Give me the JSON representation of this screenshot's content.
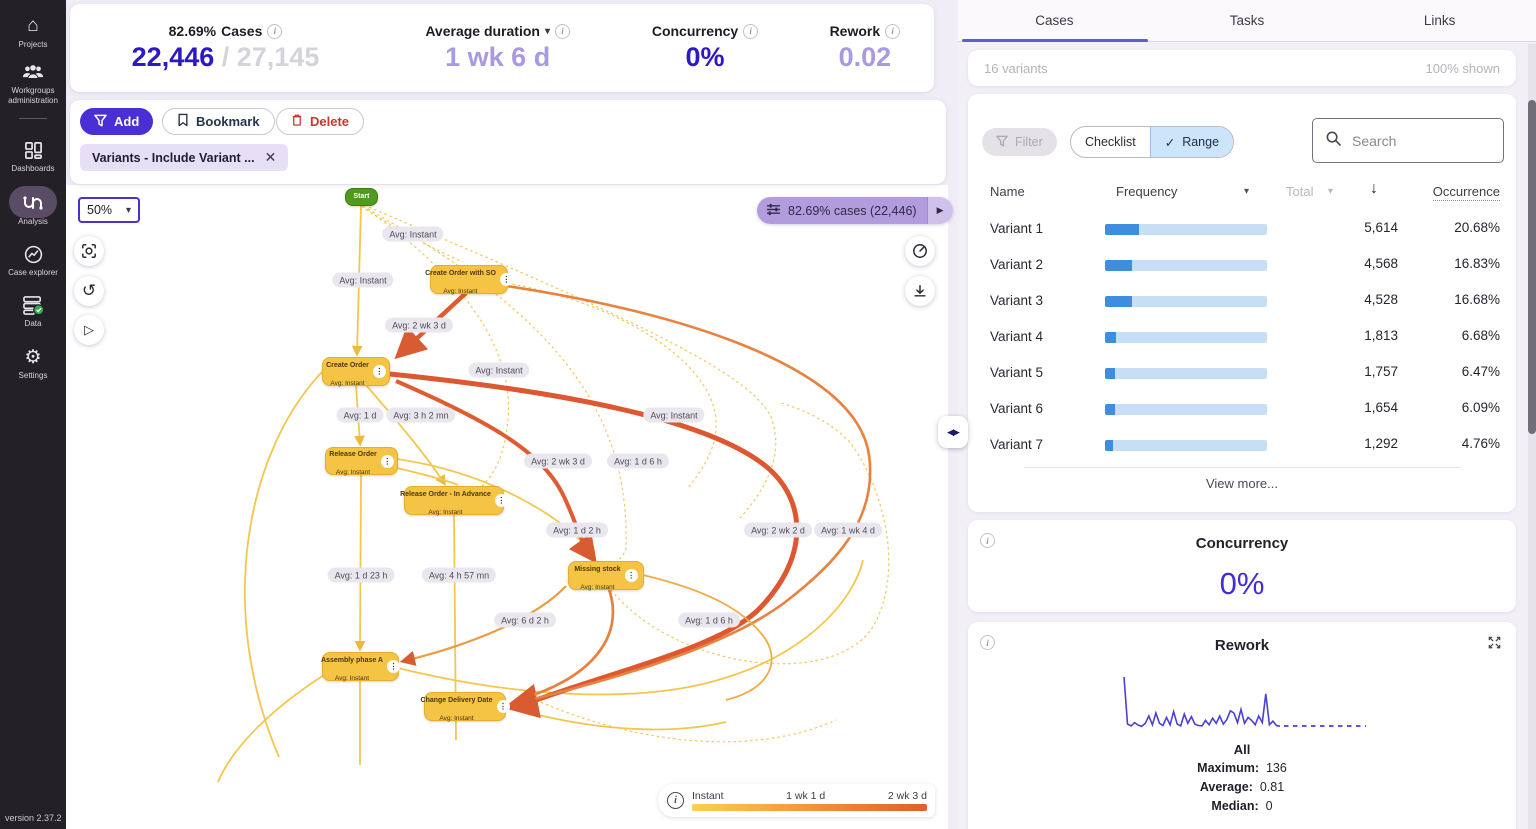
{
  "sidebar": {
    "items": [
      {
        "label": "Projects"
      },
      {
        "label": "Workgroups administration"
      },
      {
        "label": "Dashboards"
      },
      {
        "label": "Analysis"
      },
      {
        "label": "Case explorer"
      },
      {
        "label": "Data"
      },
      {
        "label": "Settings"
      }
    ],
    "version": "version 2.37.2"
  },
  "stats": {
    "cases": {
      "percent": "82.69%",
      "label": "Cases",
      "value": "22,446",
      "total": "/ 27,145"
    },
    "duration": {
      "label": "Average duration",
      "value": "1 wk 6 d"
    },
    "concurrency": {
      "label": "Concurrency",
      "value": "0%"
    },
    "rework": {
      "label": "Rework",
      "value": "0.02"
    }
  },
  "toolbar": {
    "add_label": "Add",
    "bookmark_label": "Bookmark",
    "delete_label": "Delete",
    "chip_label": "Variants - Include Variant ..."
  },
  "graph": {
    "zoom_level": "50%",
    "badge_label": "82.69% cases (22,446)",
    "nodes": [
      {
        "title": "Start"
      },
      {
        "title": "Create Order with SO",
        "sub": "Avg: Instant"
      },
      {
        "title": "Create Order",
        "sub": "Avg: Instant"
      },
      {
        "title": "Release Order",
        "sub": "Avg: Instant"
      },
      {
        "title": "Release Order - In Advance",
        "sub": "Avg: Instant"
      },
      {
        "title": "Missing stock",
        "sub": "Avg: Instant"
      },
      {
        "title": "Assembly phase A",
        "sub": "Avg: Instant"
      },
      {
        "title": "Change Delivery Date",
        "sub": "Avg: Instant"
      }
    ],
    "edge_labels": [
      "Avg: Instant",
      "Avg: Instant",
      "Avg: 2 wk 3 d",
      "Avg: Instant",
      "Avg: 1 d",
      "Avg: 3 h 2 mn",
      "Avg: Instant",
      "Avg: 2 wk 3 d",
      "Avg: 1 d 6 h",
      "Avg: 1 d 2 h",
      "Avg: 2 wk 2 d",
      "Avg: 1 wk 4 d",
      "Avg: 1 d 23 h",
      "Avg: 4 h 57 mn",
      "Avg: 6 d 2 h",
      "Avg: 1 d 6 h"
    ],
    "legend": {
      "labels": [
        "Instant",
        "1 wk 1 d",
        "2 wk 3 d"
      ]
    }
  },
  "panel": {
    "tabs": [
      "Cases",
      "Tasks",
      "Links"
    ],
    "variants_count": "16 variants",
    "shown_label": "100% shown",
    "filter_label": "Filter",
    "checklist_label": "Checklist",
    "range_label": "Range",
    "search_placeholder": "Search",
    "columns": {
      "name": "Name",
      "frequency": "Frequency",
      "total": "Total",
      "occurrence": "Occurrence"
    },
    "variants": [
      {
        "name": "Variant 1",
        "value": "5,614",
        "pct": "20.68%",
        "bar": 20.68
      },
      {
        "name": "Variant 2",
        "value": "4,568",
        "pct": "16.83%",
        "bar": 16.83
      },
      {
        "name": "Variant 3",
        "value": "4,528",
        "pct": "16.68%",
        "bar": 16.68
      },
      {
        "name": "Variant 4",
        "value": "1,813",
        "pct": "6.68%",
        "bar": 6.68
      },
      {
        "name": "Variant 5",
        "value": "1,757",
        "pct": "6.47%",
        "bar": 6.47
      },
      {
        "name": "Variant 6",
        "value": "1,654",
        "pct": "6.09%",
        "bar": 6.09
      },
      {
        "name": "Variant 7",
        "value": "1,292",
        "pct": "4.76%",
        "bar": 4.76
      }
    ],
    "view_more": "View more...",
    "concurrency": {
      "title": "Concurrency",
      "value": "0%"
    },
    "rework": {
      "title": "Rework",
      "group_label": "All",
      "rows": [
        {
          "label": "Maximum:",
          "value": "136"
        },
        {
          "label": "Average:",
          "value": "0.81"
        },
        {
          "label": "Median:",
          "value": "0"
        }
      ]
    }
  },
  "chart_data": [
    {
      "type": "bar",
      "title": "Variant frequency (Cases tab)",
      "categories": [
        "Variant 1",
        "Variant 2",
        "Variant 3",
        "Variant 4",
        "Variant 5",
        "Variant 6",
        "Variant 7"
      ],
      "values": [
        5614,
        4568,
        4528,
        1813,
        1757,
        1654,
        1292
      ],
      "occurrence_pct": [
        20.68,
        16.83,
        16.68,
        6.68,
        6.47,
        6.09,
        4.76
      ],
      "note": "16 variants, 100% shown"
    },
    {
      "type": "line",
      "title": "Rework (All)",
      "max": 136,
      "average": 0.81,
      "median": 0,
      "values": [
        136,
        8,
        3,
        12,
        5,
        2,
        10,
        30,
        6,
        38,
        10,
        4,
        26,
        6,
        42,
        8,
        3,
        35,
        10,
        28,
        8,
        4,
        3,
        18,
        6,
        24,
        10,
        30,
        8,
        20,
        44,
        38,
        12,
        48,
        10,
        26,
        18,
        6,
        30,
        12,
        90,
        6,
        16,
        4,
        2
      ]
    }
  ]
}
